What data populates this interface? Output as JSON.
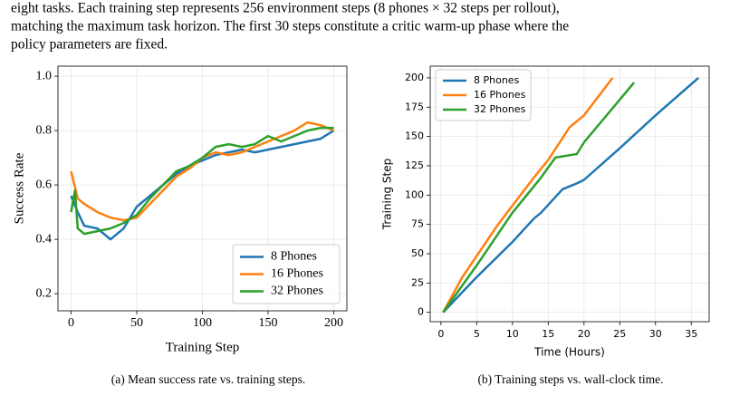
{
  "paragraph_lines": [
    "eight tasks. Each training step represents 256 environment steps (8 phones × 32 steps per rollout),",
    "matching the maximum task horizon. The first 30 steps constitute a critic warm-up phase where the",
    "policy parameters are fixed."
  ],
  "chart_data": [
    {
      "type": "line",
      "xlabel": "Training Step",
      "ylabel": "Success Rate",
      "caption": "(a) Mean success rate vs. training steps.",
      "xlim": [
        -10,
        210
      ],
      "ylim": [
        0.137,
        1.037
      ],
      "xticks": [
        0,
        50,
        100,
        150,
        200
      ],
      "yticks": [
        0.2,
        0.4,
        0.6,
        0.8,
        {
          "value": 1,
          "label": "1.0"
        }
      ],
      "grid": true,
      "legend": "lower right",
      "series": [
        {
          "name": "8 Phones",
          "color": "#1f77b4",
          "x": [
            0,
            5,
            10,
            20,
            30,
            40,
            50,
            60,
            70,
            80,
            90,
            100,
            110,
            120,
            130,
            140,
            150,
            160,
            170,
            180,
            190,
            200
          ],
          "values": [
            0.56,
            0.5,
            0.45,
            0.44,
            0.4,
            0.44,
            0.52,
            0.56,
            0.6,
            0.64,
            0.67,
            0.69,
            0.71,
            0.72,
            0.73,
            0.72,
            0.73,
            0.74,
            0.75,
            0.76,
            0.77,
            0.8
          ]
        },
        {
          "name": "16 Phones",
          "color": "#ff7f0e",
          "x": [
            0,
            5,
            10,
            20,
            30,
            40,
            50,
            60,
            70,
            80,
            90,
            100,
            110,
            120,
            130,
            140,
            150,
            160,
            170,
            180,
            190,
            200
          ],
          "values": [
            0.65,
            0.55,
            0.53,
            0.5,
            0.48,
            0.47,
            0.48,
            0.53,
            0.58,
            0.63,
            0.66,
            0.7,
            0.72,
            0.71,
            0.72,
            0.74,
            0.76,
            0.78,
            0.8,
            0.83,
            0.82,
            0.8
          ]
        },
        {
          "name": "32 Phones",
          "color": "#2ca02c",
          "x": [
            0,
            3,
            5,
            10,
            20,
            30,
            40,
            50,
            60,
            70,
            80,
            90,
            100,
            110,
            120,
            130,
            140,
            150,
            160,
            170,
            180,
            190,
            200
          ],
          "values": [
            0.5,
            0.58,
            0.44,
            0.42,
            0.43,
            0.44,
            0.46,
            0.49,
            0.55,
            0.6,
            0.65,
            0.67,
            0.7,
            0.74,
            0.75,
            0.74,
            0.75,
            0.78,
            0.76,
            0.78,
            0.8,
            0.81,
            0.81
          ]
        }
      ]
    },
    {
      "type": "line",
      "xlabel": "Time (Hours)",
      "ylabel": "Training Step",
      "caption": "(b) Training steps vs. wall-clock time.",
      "xlim": [
        -1.5,
        37.5
      ],
      "ylim": [
        -8,
        210
      ],
      "xticks": [
        0,
        5,
        10,
        15,
        20,
        25,
        30,
        35
      ],
      "yticks": [
        0,
        25,
        50,
        75,
        100,
        125,
        150,
        175,
        200
      ],
      "grid": true,
      "legend": "upper left",
      "series": [
        {
          "name": "8 Phones",
          "color": "#1f77b4",
          "x": [
            0.3,
            5,
            10,
            13,
            14,
            17,
            19,
            20,
            25,
            30,
            36
          ],
          "values": [
            0,
            30,
            60,
            80,
            85,
            105,
            110,
            113,
            140,
            168,
            200
          ]
        },
        {
          "name": "16 Phones",
          "color": "#ff7f0e",
          "x": [
            0.3,
            3,
            8,
            13,
            15,
            18,
            20,
            24
          ],
          "values": [
            0,
            30,
            75,
            115,
            130,
            158,
            168,
            200
          ]
        },
        {
          "name": "32 Phones",
          "color": "#2ca02c",
          "x": [
            0.3,
            5,
            10,
            14,
            16,
            19,
            20,
            27
          ],
          "values": [
            0,
            40,
            85,
            115,
            132,
            135,
            145,
            196
          ]
        }
      ]
    }
  ]
}
